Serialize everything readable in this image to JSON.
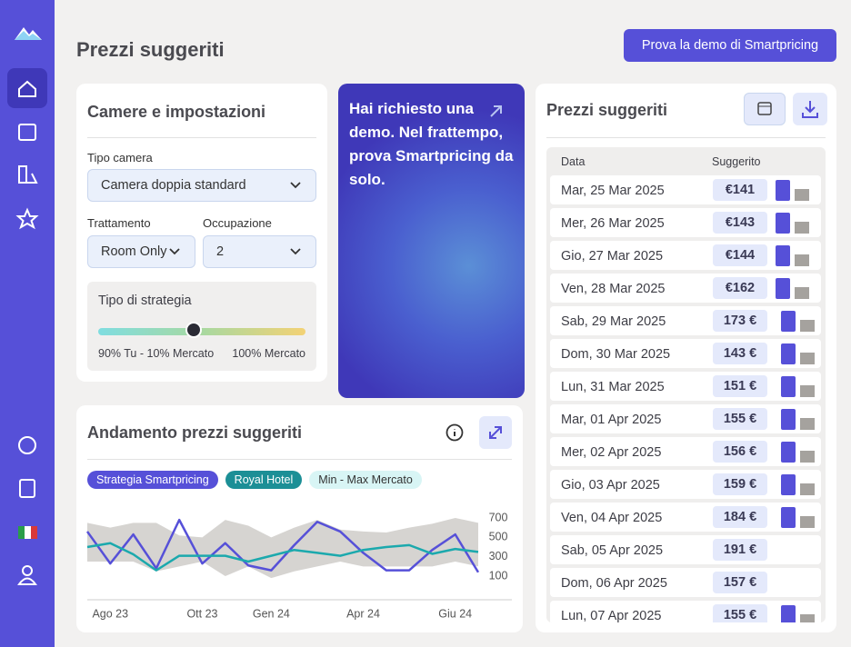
{
  "header": {
    "title": "Prezzi suggeriti",
    "button": "Prova la demo di Smartpricing"
  },
  "settings_card": {
    "title": "Camere e impostazioni",
    "room_label": "Tipo camera",
    "room_value": "Camera doppia standard",
    "board_label": "Trattamento",
    "board_value": "Room Only",
    "occupancy_label": "Occupazione",
    "occupancy_value": "2",
    "strategy_label": "Tipo di strategia",
    "strategy_left": "90% Tu - 10% Mercato",
    "strategy_right": "100% Mercato"
  },
  "demo_card": {
    "text": "Hai richiesto una demo. Nel frattempo, prova Smartpricing da solo."
  },
  "prices_card": {
    "title": "Prezzi suggeriti",
    "col_date": "Data",
    "col_price": "Suggerito",
    "rows": [
      [
        "Mar, 25 Mar 2025",
        "€141",
        true
      ],
      [
        "Mer, 26 Mar 2025",
        "€143",
        true
      ],
      [
        "Gio, 27 Mar 2025",
        "€144",
        true
      ],
      [
        "Ven, 28 Mar 2025",
        "€162",
        true
      ],
      [
        "Sab, 29 Mar 2025",
        "173 €",
        true
      ],
      [
        "Dom, 30 Mar 2025",
        "143 €",
        true
      ],
      [
        "Lun, 31 Mar 2025",
        "151 €",
        true
      ],
      [
        "Mar, 01 Apr 2025",
        "155 €",
        true
      ],
      [
        "Mer, 02 Apr 2025",
        "156 €",
        true
      ],
      [
        "Gio, 03 Apr 2025",
        "159 €",
        true
      ],
      [
        "Ven, 04 Apr 2025",
        "184 €",
        true
      ],
      [
        "Sab, 05 Apr 2025",
        "191 €",
        false
      ],
      [
        "Dom, 06 Apr 2025",
        "157 €",
        false
      ],
      [
        "Lun, 07 Apr 2025",
        "155 €",
        true
      ]
    ]
  },
  "chart_data": {
    "type": "line",
    "title": "Andamento prezzi suggeriti",
    "categories": [
      null,
      "Ago 23",
      null,
      null,
      null,
      "Ott 23",
      null,
      null,
      "Gen 24",
      null,
      null,
      null,
      "Apr 24",
      null,
      null,
      null,
      "Giu 24",
      null
    ],
    "series": [
      {
        "name": "Strategia Smartpricing",
        "color": "#5650d8",
        "values": [
          560,
          230,
          530,
          180,
          680,
          230,
          440,
          210,
          160,
          420,
          660,
          560,
          340,
          160,
          160,
          370,
          530,
          140
        ]
      },
      {
        "name": "Royal Hotel",
        "color": "#1ba9ad",
        "values": [
          400,
          440,
          325,
          160,
          310,
          310,
          310,
          250,
          310,
          370,
          340,
          310,
          370,
          400,
          420,
          330,
          380,
          350
        ]
      }
    ],
    "range": {
      "name": "Min - Max Mercato",
      "color": "#d6d4d1",
      "min": [
        250,
        250,
        250,
        150,
        200,
        250,
        100,
        200,
        80,
        150,
        200,
        250,
        200,
        200,
        200,
        200,
        250,
        200
      ],
      "max": [
        650,
        600,
        650,
        650,
        520,
        500,
        680,
        620,
        500,
        600,
        680,
        580,
        560,
        550,
        600,
        640,
        700,
        650
      ]
    },
    "ylim": [
      0,
      800
    ],
    "yticks": [
      100,
      300,
      500,
      700
    ]
  }
}
